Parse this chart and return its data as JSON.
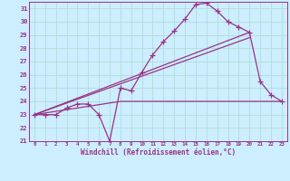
{
  "xlabel": "Windchill (Refroidissement éolien,°C)",
  "bg_color": "#cceeff",
  "grid_color": "#aaddcc",
  "line_color": "#993388",
  "xlim": [
    -0.5,
    23.5
  ],
  "ylim": [
    21,
    31.5
  ],
  "xticks": [
    0,
    1,
    2,
    3,
    4,
    5,
    6,
    7,
    8,
    9,
    10,
    11,
    12,
    13,
    14,
    15,
    16,
    17,
    18,
    19,
    20,
    21,
    22,
    23
  ],
  "yticks": [
    21,
    22,
    23,
    24,
    25,
    26,
    27,
    28,
    29,
    30,
    31
  ],
  "series1_x": [
    0,
    1,
    2,
    3,
    4,
    5,
    6,
    7,
    8,
    9,
    10,
    11,
    12,
    13,
    14,
    15,
    16,
    17,
    18,
    19,
    20,
    21,
    22,
    23
  ],
  "series1_y": [
    23.0,
    23.0,
    23.0,
    23.5,
    23.8,
    23.8,
    23.0,
    21.0,
    25.0,
    24.8,
    26.2,
    27.5,
    28.5,
    29.3,
    30.2,
    31.3,
    31.4,
    30.8,
    30.0,
    29.6,
    29.2,
    25.5,
    24.5,
    24.0
  ],
  "series2_x": [
    0,
    20
  ],
  "series2_y": [
    23.0,
    29.2
  ],
  "series3_x": [
    0,
    20
  ],
  "series3_y": [
    23.0,
    28.8
  ],
  "series4_x": [
    0,
    8,
    19,
    23
  ],
  "series4_y": [
    23.0,
    24.0,
    24.0,
    24.0
  ],
  "marker": "+",
  "markersize": 4,
  "linewidth": 0.9
}
